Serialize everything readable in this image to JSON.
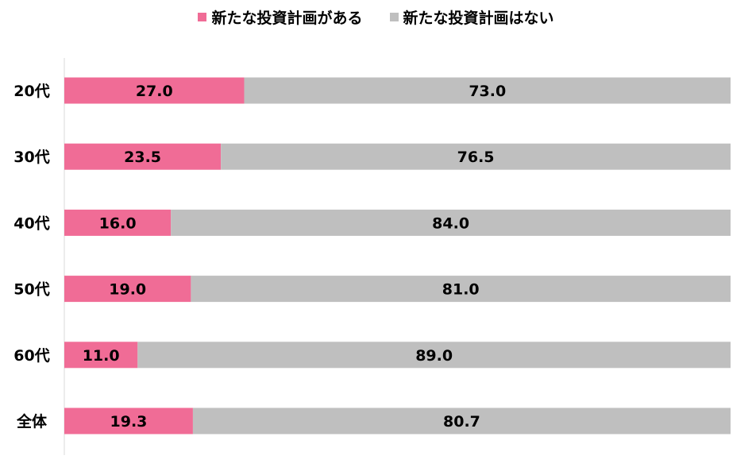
{
  "chart_data": {
    "type": "bar",
    "orientation": "horizontal",
    "stacked": true,
    "percent": true,
    "categories": [
      "20代",
      "30代",
      "40代",
      "50代",
      "60代",
      "全体"
    ],
    "series": [
      {
        "name": "新たな投資計画がある",
        "color": "#f06c96",
        "values": [
          27.0,
          23.5,
          16.0,
          19.0,
          11.0,
          19.3
        ]
      },
      {
        "name": "新たな投資計画はない",
        "color": "#bfbfbf",
        "values": [
          73.0,
          76.5,
          84.0,
          81.0,
          89.0,
          80.7
        ]
      }
    ],
    "xlim": [
      0,
      100
    ],
    "legend": "top-center",
    "grid": false
  }
}
